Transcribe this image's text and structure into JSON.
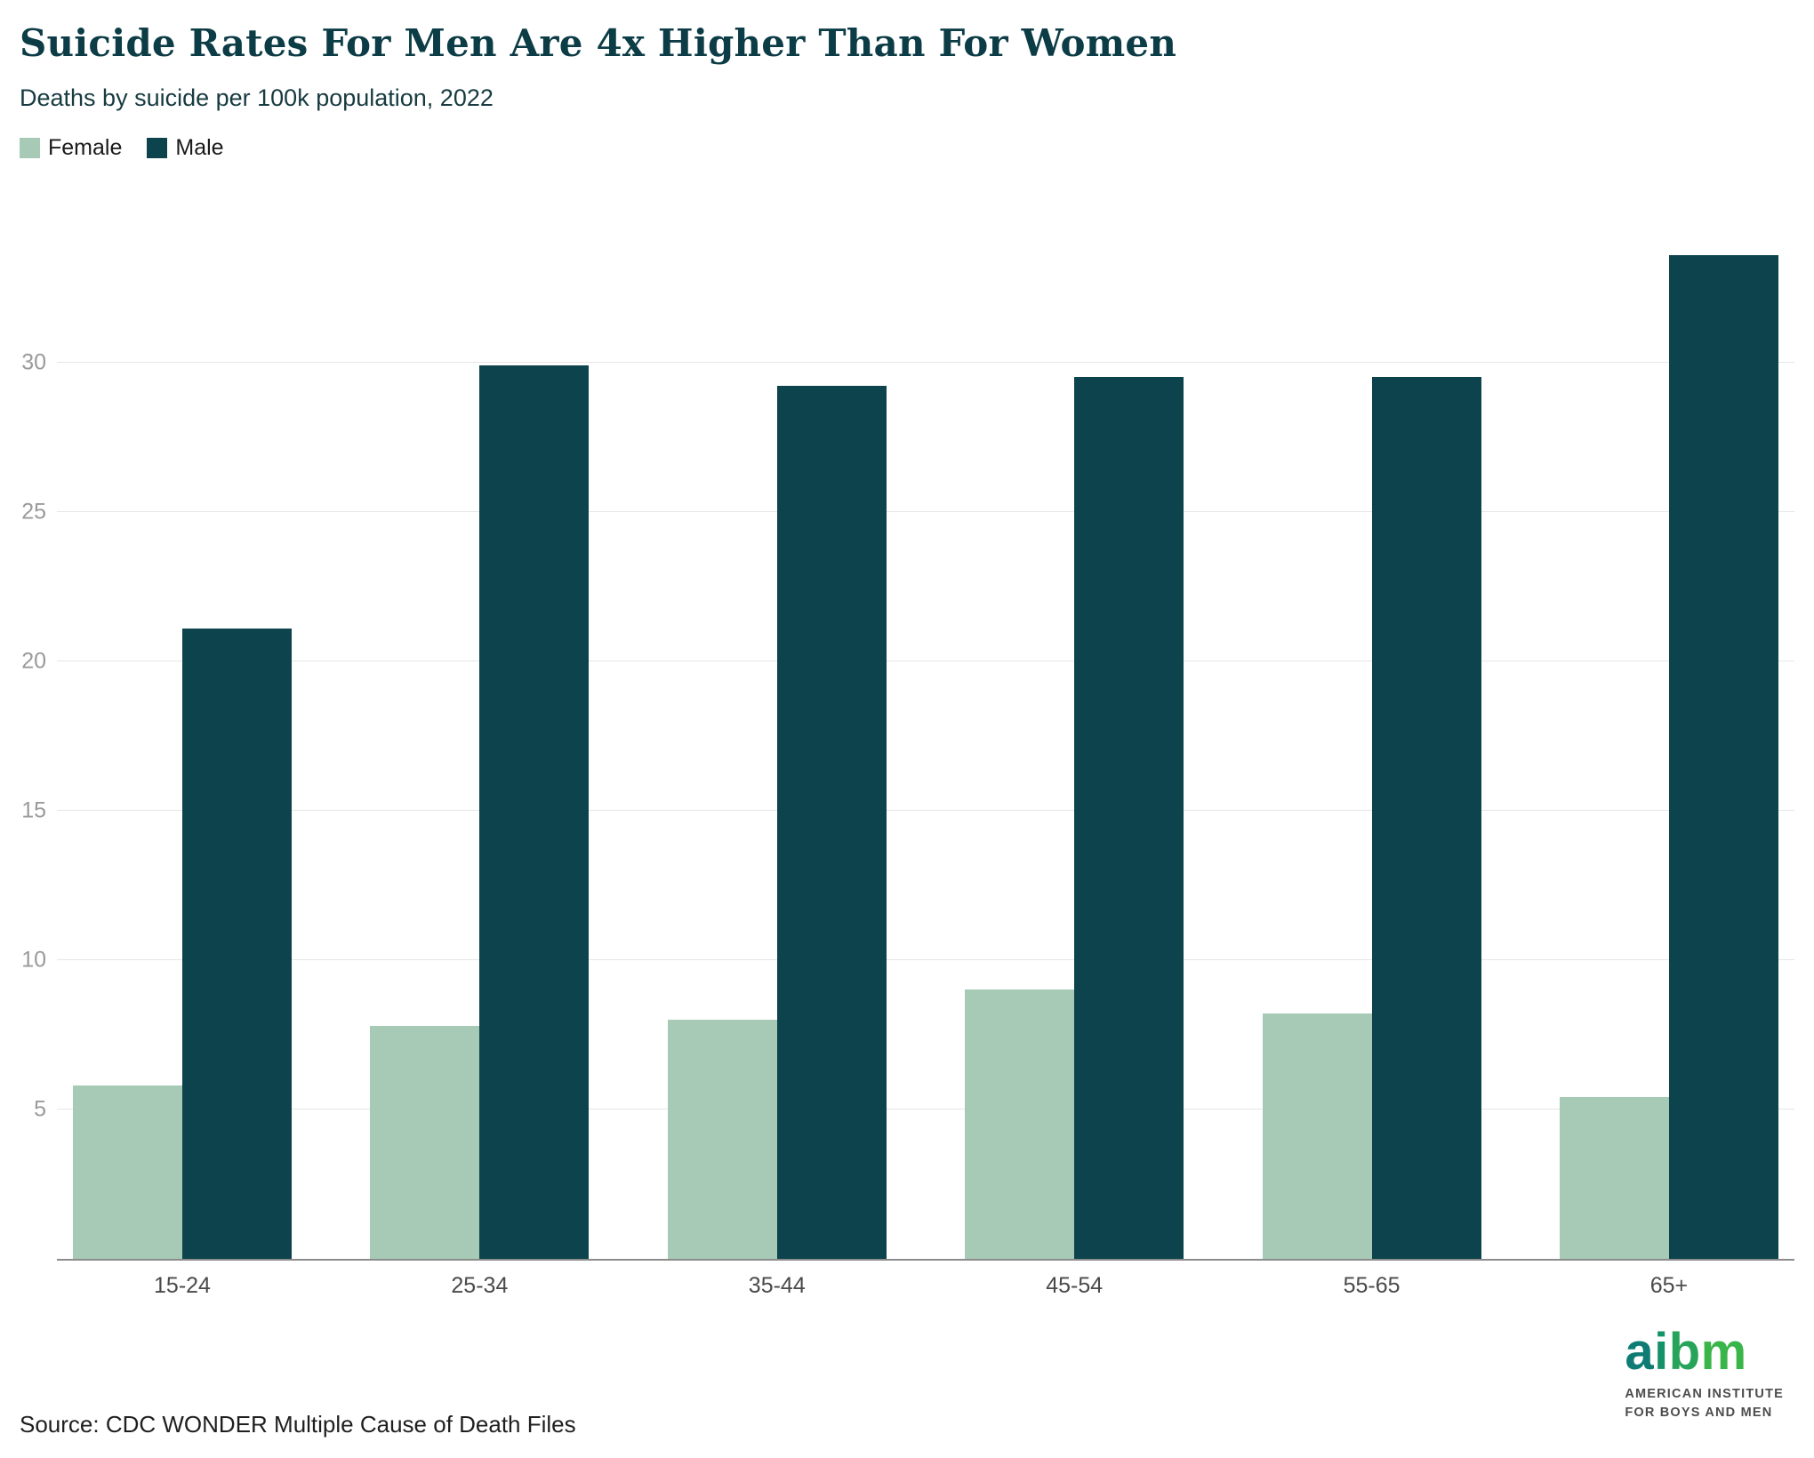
{
  "header": {
    "title": "Suicide Rates For Men Are 4x Higher Than For Women",
    "subtitle": "Deaths by suicide per 100k population, 2022"
  },
  "legend": {
    "items": [
      {
        "label": "Female",
        "color": "#a7cab6"
      },
      {
        "label": "Male",
        "color": "#0d434c"
      }
    ]
  },
  "chart_data": {
    "type": "bar",
    "title": "Suicide Rates For Men Are 4x Higher Than For Women",
    "subtitle": "Deaths by suicide per 100k population, 2022",
    "categories": [
      "15-24",
      "25-34",
      "35-44",
      "45-54",
      "55-65",
      "65+"
    ],
    "series": [
      {
        "name": "Female",
        "color": "#a7cab6",
        "values": [
          5.8,
          7.8,
          8.0,
          9.0,
          8.2,
          5.4
        ]
      },
      {
        "name": "Male",
        "color": "#0d434c",
        "values": [
          21.1,
          29.9,
          29.2,
          29.5,
          29.5,
          33.6
        ]
      }
    ],
    "xlabel": "",
    "ylabel": "",
    "ylim": [
      0,
      35.4
    ],
    "yticks": [
      5,
      10,
      15,
      20,
      25,
      30
    ],
    "grid": "horizontal",
    "legend_position": "top-left"
  },
  "footer": {
    "source": "Source: CDC WONDER Multiple Cause of Death Files"
  },
  "logo": {
    "letters": [
      {
        "ch": "a",
        "color": "#0e7c74"
      },
      {
        "ch": "i",
        "color": "#15926a"
      },
      {
        "ch": "b",
        "color": "#27a45a"
      },
      {
        "ch": "m",
        "color": "#3ab54a"
      }
    ],
    "line1": "AMERICAN INSTITUTE",
    "line2": "FOR BOYS AND MEN"
  }
}
